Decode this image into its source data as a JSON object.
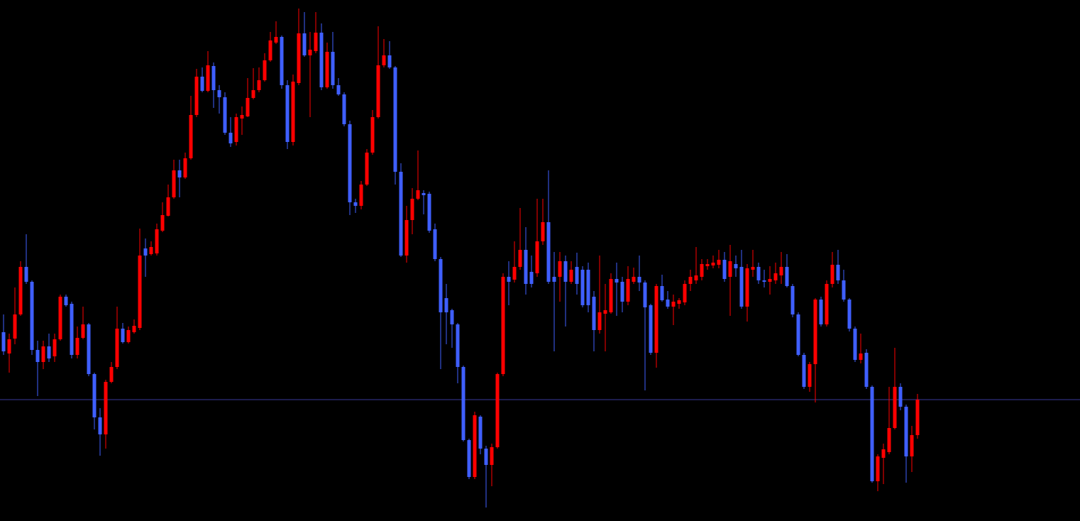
{
  "chart_data": {
    "type": "candlestick",
    "up_color": "#ff0000",
    "down_color": "#3f5fff",
    "background": "#000000",
    "ylim": [
      266,
      1000
    ],
    "horizontal_line": {
      "value": 437,
      "color": "#3a3a9a"
    },
    "open": [
      532,
      502,
      523,
      557,
      624,
      603,
      507,
      490,
      512,
      498,
      522,
      582,
      572,
      500,
      524,
      543,
      473,
      412,
      388,
      462,
      483,
      537,
      518,
      532,
      538,
      650,
      642,
      643,
      675,
      696,
      722,
      760,
      750,
      777,
      838,
      892,
      872,
      907,
      873,
      863,
      813,
      800,
      833,
      836,
      862,
      873,
      887,
      915,
      940,
      948,
      880,
      800,
      883,
      953,
      922,
      928,
      954,
      877,
      927,
      880,
      867,
      825,
      715,
      710,
      740,
      785,
      835,
      908,
      922,
      905,
      758,
      640,
      690,
      720,
      728,
      727,
      677,
      635,
      580,
      563,
      543,
      483,
      380,
      328,
      413,
      368,
      345,
      370,
      473,
      610,
      606,
      624,
      648,
      617,
      615,
      660,
      687,
      610,
      610,
      632,
      603,
      624,
      620,
      620,
      582,
      535,
      558,
      560,
      607,
      603,
      575,
      603,
      610,
      602,
      570,
      503,
      597,
      578,
      568,
      572,
      574,
      600,
      605,
      610,
      625,
      626,
      627,
      634,
      610,
      628,
      624,
      568,
      620,
      624,
      605,
      603,
      605,
      612,
      624,
      597,
      557,
      500,
      455,
      487,
      578,
      543,
      600,
      627,
      605,
      578,
      537,
      493,
      503,
      455,
      322,
      355,
      363,
      397,
      455,
      427,
      357,
      387
    ],
    "high": [
      557,
      530,
      595,
      632,
      670,
      605,
      520,
      520,
      530,
      530,
      585,
      585,
      575,
      540,
      568,
      545,
      475,
      425,
      465,
      490,
      568,
      545,
      540,
      550,
      678,
      664,
      660,
      685,
      715,
      740,
      775,
      775,
      785,
      865,
      903,
      905,
      928,
      912,
      880,
      870,
      835,
      840,
      850,
      890,
      904,
      905,
      925,
      955,
      970,
      950,
      887,
      895,
      988,
      983,
      955,
      983,
      967,
      940,
      955,
      890,
      870,
      830,
      720,
      745,
      790,
      845,
      963,
      945,
      942,
      907,
      770,
      710,
      735,
      788,
      732,
      730,
      685,
      638,
      600,
      565,
      545,
      485,
      382,
      420,
      415,
      372,
      375,
      475,
      615,
      632,
      660,
      707,
      680,
      640,
      720,
      720,
      760,
      645,
      645,
      640,
      632,
      644,
      625,
      630,
      590,
      640,
      600,
      615,
      630,
      610,
      625,
      623,
      640,
      605,
      572,
      600,
      613,
      590,
      585,
      580,
      605,
      620,
      652,
      635,
      635,
      640,
      648,
      645,
      655,
      640,
      648,
      628,
      648,
      630,
      620,
      625,
      630,
      645,
      642,
      600,
      560,
      503,
      490,
      580,
      582,
      605,
      645,
      648,
      620,
      580,
      540,
      530,
      508,
      457,
      360,
      375,
      455,
      510,
      460,
      430,
      400,
      445
    ],
    "low": [
      500,
      475,
      515,
      555,
      600,
      500,
      442,
      480,
      490,
      490,
      520,
      568,
      495,
      495,
      522,
      470,
      395,
      358,
      368,
      460,
      480,
      516,
      516,
      530,
      535,
      610,
      640,
      640,
      673,
      695,
      720,
      722,
      748,
      775,
      835,
      870,
      870,
      848,
      840,
      810,
      793,
      795,
      810,
      835,
      860,
      870,
      885,
      913,
      938,
      875,
      790,
      795,
      880,
      920,
      835,
      925,
      873,
      875,
      875,
      865,
      822,
      697,
      700,
      705,
      738,
      782,
      833,
      905,
      903,
      740,
      638,
      630,
      670,
      718,
      698,
      672,
      632,
      480,
      515,
      510,
      460,
      378,
      325,
      325,
      360,
      285,
      315,
      368,
      470,
      570,
      602,
      620,
      585,
      595,
      610,
      655,
      600,
      505,
      575,
      540,
      600,
      585,
      567,
      560,
      505,
      530,
      505,
      558,
      555,
      560,
      570,
      600,
      590,
      450,
      500,
      482,
      575,
      565,
      542,
      565,
      570,
      590,
      600,
      605,
      620,
      622,
      622,
      603,
      555,
      610,
      565,
      547,
      610,
      600,
      595,
      585,
      600,
      600,
      595,
      553,
      498,
      452,
      448,
      433,
      540,
      540,
      595,
      600,
      575,
      533,
      490,
      488,
      452,
      320,
      308,
      318,
      360,
      395,
      422,
      320,
      335,
      382
    ],
    "close": [
      505,
      522,
      557,
      624,
      603,
      507,
      490,
      512,
      495,
      522,
      582,
      570,
      500,
      524,
      543,
      473,
      412,
      388,
      462,
      483,
      537,
      518,
      535,
      541,
      640,
      640,
      652,
      677,
      697,
      722,
      760,
      750,
      777,
      838,
      892,
      872,
      908,
      873,
      863,
      813,
      798,
      835,
      838,
      862,
      873,
      887,
      915,
      943,
      948,
      880,
      800,
      885,
      953,
      922,
      930,
      954,
      877,
      927,
      880,
      867,
      825,
      715,
      710,
      740,
      785,
      835,
      908,
      922,
      905,
      758,
      640,
      690,
      720,
      732,
      725,
      675,
      635,
      560,
      560,
      543,
      483,
      380,
      328,
      415,
      368,
      345,
      370,
      473,
      610,
      603,
      624,
      648,
      600,
      600,
      660,
      687,
      603,
      603,
      632,
      603,
      620,
      600,
      570,
      570,
      535,
      560,
      563,
      607,
      602,
      575,
      607,
      610,
      602,
      567,
      503,
      597,
      577,
      568,
      575,
      577,
      600,
      610,
      612,
      628,
      628,
      630,
      634,
      607,
      632,
      622,
      568,
      622,
      624,
      605,
      603,
      607,
      615,
      624,
      597,
      557,
      500,
      455,
      487,
      578,
      543,
      600,
      627,
      605,
      578,
      537,
      493,
      502,
      455,
      322,
      357,
      367,
      397,
      455,
      427,
      357,
      387,
      437
    ]
  }
}
